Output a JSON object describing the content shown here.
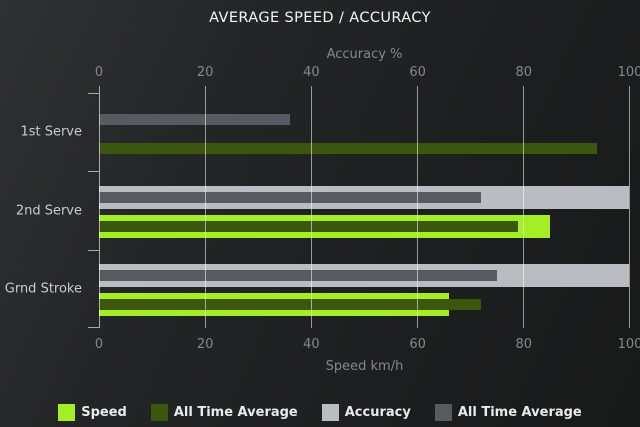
{
  "chart_data": {
    "type": "bar",
    "orientation": "horizontal",
    "title": "AVERAGE SPEED / ACCURACY",
    "categories": [
      "1st Serve",
      "2nd Serve",
      "Grnd Stroke"
    ],
    "series": [
      {
        "id": "speed",
        "name": "Speed",
        "color": "#a4ee26",
        "axis": "bottom",
        "values": [
          0,
          85,
          66
        ]
      },
      {
        "id": "speed-all-time-average",
        "name": "All Time Average",
        "color": "#3b570d",
        "axis": "bottom",
        "values": [
          94,
          79,
          72
        ]
      },
      {
        "id": "accuracy",
        "name": "Accuracy",
        "color": "#b9bcc0",
        "axis": "top",
        "values": [
          0,
          100,
          100
        ]
      },
      {
        "id": "accuracy-all-time-average",
        "name": "All Time Average",
        "color": "#565b61",
        "axis": "top",
        "values": [
          36,
          72,
          75
        ]
      }
    ],
    "top_axis": {
      "label": "Accuracy %",
      "ticks": [
        0,
        20,
        40,
        60,
        80,
        100
      ],
      "range": [
        0,
        100
      ]
    },
    "bottom_axis": {
      "label": "Speed km/h",
      "ticks": [
        0,
        20,
        40,
        60,
        80,
        100
      ],
      "range": [
        0,
        100
      ]
    },
    "legend": {
      "position": "bottom",
      "items": [
        "Speed",
        "All Time Average",
        "Accuracy",
        "All Time Average"
      ]
    },
    "grid": "vertical",
    "colors": {
      "background_top_left": "#303132",
      "background_bottom_right": "#181919",
      "gridline": "rgba(255,255,255,0.55)",
      "title_text": "#f5f5f5",
      "axis_text": "#85888b",
      "category_text": "#c9cbcd",
      "legend_text": "#e9eaeb"
    }
  }
}
